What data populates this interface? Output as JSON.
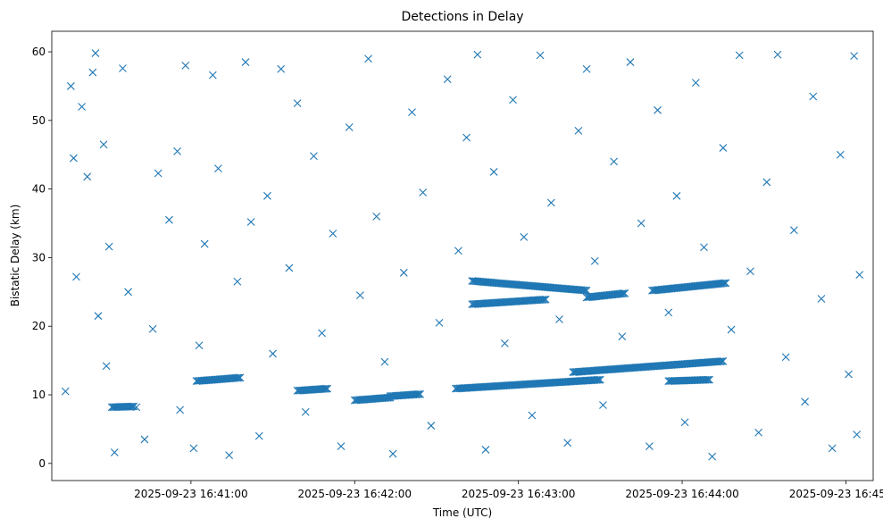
{
  "chart_data": {
    "type": "scatter",
    "title": "Detections in Delay",
    "xlabel": "Time (UTC)",
    "ylabel": "Bistatic Delay (km)",
    "marker": "x",
    "color": "#1f77b4",
    "grid": false,
    "legend": "none",
    "xlim": [
      "2025-09-23 16:40:09",
      "2025-09-23 16:45:10"
    ],
    "ylim": [
      -2.5,
      63
    ],
    "x_ticks": [
      "2025-09-23 16:41:00",
      "2025-09-23 16:42:00",
      "2025-09-23 16:43:00",
      "2025-09-23 16:44:00",
      "2025-09-23 16:45:00"
    ],
    "y_ticks": [
      0,
      10,
      20,
      30,
      40,
      50,
      60
    ],
    "tracks": [
      {
        "start": "2025-09-23 16:40:31",
        "end": "2025-09-23 16:40:39",
        "delay_start": 8.2,
        "delay_end": 8.3
      },
      {
        "start": "2025-09-23 16:41:02",
        "end": "2025-09-23 16:41:18",
        "delay_start": 12.0,
        "delay_end": 12.5
      },
      {
        "start": "2025-09-23 16:41:39",
        "end": "2025-09-23 16:41:50",
        "delay_start": 10.6,
        "delay_end": 10.9
      },
      {
        "start": "2025-09-23 16:42:00",
        "end": "2025-09-23 16:42:13",
        "delay_start": 9.2,
        "delay_end": 9.6
      },
      {
        "start": "2025-09-23 16:42:13",
        "end": "2025-09-23 16:42:24",
        "delay_start": 9.8,
        "delay_end": 10.1
      },
      {
        "start": "2025-09-23 16:42:37",
        "end": "2025-09-23 16:43:30",
        "delay_start": 10.9,
        "delay_end": 12.2
      },
      {
        "start": "2025-09-23 16:42:43",
        "end": "2025-09-23 16:43:25",
        "delay_start": 26.6,
        "delay_end": 25.2
      },
      {
        "start": "2025-09-23 16:42:43",
        "end": "2025-09-23 16:43:10",
        "delay_start": 23.2,
        "delay_end": 23.9
      },
      {
        "start": "2025-09-23 16:43:20",
        "end": "2025-09-23 16:44:15",
        "delay_start": 13.3,
        "delay_end": 14.9
      },
      {
        "start": "2025-09-23 16:43:25",
        "end": "2025-09-23 16:43:39",
        "delay_start": 24.2,
        "delay_end": 24.8
      },
      {
        "start": "2025-09-23 16:43:49",
        "end": "2025-09-23 16:44:16",
        "delay_start": 25.2,
        "delay_end": 26.3
      },
      {
        "start": "2025-09-23 16:43:55",
        "end": "2025-09-23 16:44:10",
        "delay_start": 12.0,
        "delay_end": 12.2
      }
    ],
    "scatter_points": [
      [
        "2025-09-23 16:40:14",
        10.5
      ],
      [
        "2025-09-23 16:40:16",
        55.0
      ],
      [
        "2025-09-23 16:40:17",
        44.5
      ],
      [
        "2025-09-23 16:40:18",
        27.2
      ],
      [
        "2025-09-23 16:40:20",
        52.0
      ],
      [
        "2025-09-23 16:40:22",
        41.8
      ],
      [
        "2025-09-23 16:40:24",
        57.0
      ],
      [
        "2025-09-23 16:40:25",
        59.8
      ],
      [
        "2025-09-23 16:40:26",
        21.5
      ],
      [
        "2025-09-23 16:40:28",
        46.5
      ],
      [
        "2025-09-23 16:40:29",
        14.2
      ],
      [
        "2025-09-23 16:40:30",
        31.6
      ],
      [
        "2025-09-23 16:40:32",
        1.6
      ],
      [
        "2025-09-23 16:40:35",
        57.6
      ],
      [
        "2025-09-23 16:40:37",
        25.0
      ],
      [
        "2025-09-23 16:40:40",
        8.2
      ],
      [
        "2025-09-23 16:40:43",
        3.5
      ],
      [
        "2025-09-23 16:40:46",
        19.6
      ],
      [
        "2025-09-23 16:40:48",
        42.3
      ],
      [
        "2025-09-23 16:40:52",
        35.5
      ],
      [
        "2025-09-23 16:40:55",
        45.5
      ],
      [
        "2025-09-23 16:40:56",
        7.8
      ],
      [
        "2025-09-23 16:40:58",
        58.0
      ],
      [
        "2025-09-23 16:41:01",
        2.2
      ],
      [
        "2025-09-23 16:41:03",
        17.2
      ],
      [
        "2025-09-23 16:41:05",
        32.0
      ],
      [
        "2025-09-23 16:41:08",
        56.6
      ],
      [
        "2025-09-23 16:41:10",
        43.0
      ],
      [
        "2025-09-23 16:41:14",
        1.2
      ],
      [
        "2025-09-23 16:41:17",
        26.5
      ],
      [
        "2025-09-23 16:41:20",
        58.5
      ],
      [
        "2025-09-23 16:41:22",
        35.2
      ],
      [
        "2025-09-23 16:41:25",
        4.0
      ],
      [
        "2025-09-23 16:41:28",
        39.0
      ],
      [
        "2025-09-23 16:41:30",
        16.0
      ],
      [
        "2025-09-23 16:41:33",
        57.5
      ],
      [
        "2025-09-23 16:41:36",
        28.5
      ],
      [
        "2025-09-23 16:41:39",
        52.5
      ],
      [
        "2025-09-23 16:41:42",
        7.5
      ],
      [
        "2025-09-23 16:41:45",
        44.8
      ],
      [
        "2025-09-23 16:41:48",
        19.0
      ],
      [
        "2025-09-23 16:41:52",
        33.5
      ],
      [
        "2025-09-23 16:41:55",
        2.5
      ],
      [
        "2025-09-23 16:41:58",
        49.0
      ],
      [
        "2025-09-23 16:42:02",
        24.5
      ],
      [
        "2025-09-23 16:42:05",
        59.0
      ],
      [
        "2025-09-23 16:42:08",
        36.0
      ],
      [
        "2025-09-23 16:42:11",
        14.8
      ],
      [
        "2025-09-23 16:42:14",
        1.4
      ],
      [
        "2025-09-23 16:42:18",
        27.8
      ],
      [
        "2025-09-23 16:42:21",
        51.2
      ],
      [
        "2025-09-23 16:42:25",
        39.5
      ],
      [
        "2025-09-23 16:42:28",
        5.5
      ],
      [
        "2025-09-23 16:42:31",
        20.5
      ],
      [
        "2025-09-23 16:42:34",
        56.0
      ],
      [
        "2025-09-23 16:42:38",
        31.0
      ],
      [
        "2025-09-23 16:42:41",
        47.5
      ],
      [
        "2025-09-23 16:42:45",
        59.6
      ],
      [
        "2025-09-23 16:42:48",
        2.0
      ],
      [
        "2025-09-23 16:42:51",
        42.5
      ],
      [
        "2025-09-23 16:42:55",
        17.5
      ],
      [
        "2025-09-23 16:42:58",
        53.0
      ],
      [
        "2025-09-23 16:43:02",
        33.0
      ],
      [
        "2025-09-23 16:43:05",
        7.0
      ],
      [
        "2025-09-23 16:43:08",
        59.5
      ],
      [
        "2025-09-23 16:43:12",
        38.0
      ],
      [
        "2025-09-23 16:43:15",
        21.0
      ],
      [
        "2025-09-23 16:43:18",
        3.0
      ],
      [
        "2025-09-23 16:43:22",
        48.5
      ],
      [
        "2025-09-23 16:43:25",
        57.5
      ],
      [
        "2025-09-23 16:43:28",
        29.5
      ],
      [
        "2025-09-23 16:43:31",
        8.5
      ],
      [
        "2025-09-23 16:43:35",
        44.0
      ],
      [
        "2025-09-23 16:43:38",
        18.5
      ],
      [
        "2025-09-23 16:43:41",
        58.5
      ],
      [
        "2025-09-23 16:43:45",
        35.0
      ],
      [
        "2025-09-23 16:43:48",
        2.5
      ],
      [
        "2025-09-23 16:43:51",
        51.5
      ],
      [
        "2025-09-23 16:43:55",
        22.0
      ],
      [
        "2025-09-23 16:43:58",
        39.0
      ],
      [
        "2025-09-23 16:44:01",
        6.0
      ],
      [
        "2025-09-23 16:44:05",
        55.5
      ],
      [
        "2025-09-23 16:44:08",
        31.5
      ],
      [
        "2025-09-23 16:44:11",
        1.0
      ],
      [
        "2025-09-23 16:44:15",
        46.0
      ],
      [
        "2025-09-23 16:44:18",
        19.5
      ],
      [
        "2025-09-23 16:44:21",
        59.5
      ],
      [
        "2025-09-23 16:44:25",
        28.0
      ],
      [
        "2025-09-23 16:44:28",
        4.5
      ],
      [
        "2025-09-23 16:44:31",
        41.0
      ],
      [
        "2025-09-23 16:44:35",
        59.6
      ],
      [
        "2025-09-23 16:44:38",
        15.5
      ],
      [
        "2025-09-23 16:44:41",
        34.0
      ],
      [
        "2025-09-23 16:44:45",
        9.0
      ],
      [
        "2025-09-23 16:44:48",
        53.5
      ],
      [
        "2025-09-23 16:44:51",
        24.0
      ],
      [
        "2025-09-23 16:44:55",
        2.2
      ],
      [
        "2025-09-23 16:44:58",
        45.0
      ],
      [
        "2025-09-23 16:45:01",
        13.0
      ],
      [
        "2025-09-23 16:45:03",
        59.4
      ],
      [
        "2025-09-23 16:45:04",
        4.2
      ],
      [
        "2025-09-23 16:45:05",
        27.5
      ]
    ]
  }
}
